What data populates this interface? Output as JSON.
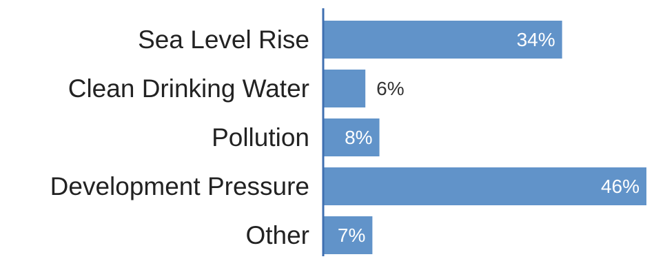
{
  "chart_data": {
    "type": "bar",
    "orientation": "horizontal",
    "categories": [
      "Sea Level Rise",
      "Clean Drinking Water",
      "Pollution",
      "Development Pressure",
      "Other"
    ],
    "values": [
      34,
      6,
      8,
      46,
      7
    ],
    "value_labels": [
      "34%",
      "6%",
      "8%",
      "46%",
      "7%"
    ],
    "unit": "%",
    "title": "",
    "xlabel": "",
    "ylabel": "",
    "xlim": [
      0,
      46
    ],
    "grid": false,
    "legend": "none"
  },
  "colors": {
    "bar": "#6193c9",
    "axis": "#3f6fb0",
    "label_inside": "#ffffff",
    "label_outside": "#333333",
    "category_text": "#222222"
  }
}
